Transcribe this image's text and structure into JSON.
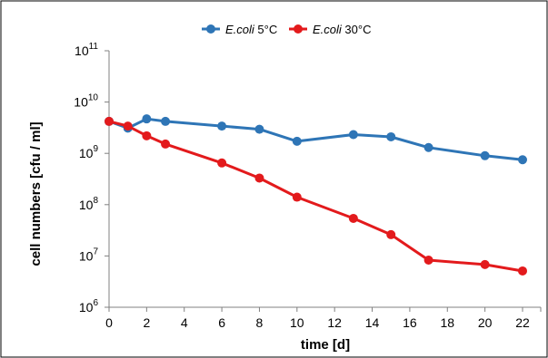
{
  "chart_data": {
    "type": "line",
    "title": "",
    "xlabel": "time [d]",
    "ylabel": "cell numbers [cfu / ml]",
    "x": [
      0,
      1,
      2,
      3,
      6,
      8,
      10,
      13,
      15,
      17,
      20,
      22
    ],
    "xlim": [
      0,
      22
    ],
    "xticks": [
      0,
      2,
      4,
      6,
      8,
      10,
      12,
      14,
      16,
      18,
      20,
      22
    ],
    "yscale": "log",
    "ylim": [
      1000000,
      100000000000
    ],
    "yticks": [
      {
        "value": 1000000,
        "base": "10",
        "exp": "6"
      },
      {
        "value": 10000000,
        "base": "10",
        "exp": "7"
      },
      {
        "value": 100000000,
        "base": "10",
        "exp": "8"
      },
      {
        "value": 1000000000,
        "base": "10",
        "exp": "9"
      },
      {
        "value": 10000000000,
        "base": "10",
        "exp": "10"
      },
      {
        "value": 100000000000,
        "base": "10",
        "exp": "11"
      }
    ],
    "grid": false,
    "legend_position": "top",
    "series": [
      {
        "name_italic": "E.coli",
        "name_rest": " 5°C",
        "color": "#2E75B6",
        "values": [
          4200000000,
          3100000000,
          4700000000,
          4200000000,
          3400000000,
          2950000000,
          1720000000,
          2320000000,
          2100000000,
          1300000000,
          900000000,
          750000000
        ]
      },
      {
        "name_italic": "E.coli",
        "name_rest": " 30°C",
        "color": "#E31A1C",
        "values": [
          4200000000,
          3400000000,
          2200000000,
          1520000000,
          650000000,
          330000000,
          140000000,
          54000000,
          26000000,
          8300000,
          6800000,
          5100000
        ]
      }
    ]
  }
}
